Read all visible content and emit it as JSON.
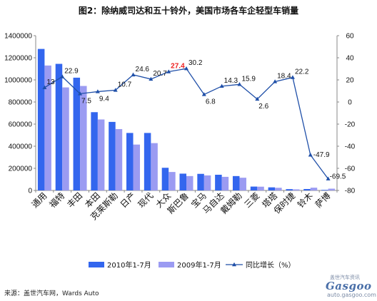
{
  "title": "图2：除纳威司达和五十铃外，美国市场各车企轻型车销量",
  "source": "来源：盖世汽车网，Wards Auto",
  "watermark": {
    "top": "盖世汽车资讯",
    "brand": "Gasgoo",
    "url": "auto.gasgoo.com"
  },
  "colors": {
    "bar2010": "#3366ee",
    "bar2009": "#9b9bf2",
    "line": "#1f4fa8",
    "highlight": "#ee2222"
  },
  "chart_data": {
    "type": "bar",
    "title": "图2：除纳威司达和五十铃外，美国市场各车企轻型车销量",
    "categories": [
      "通用",
      "福特",
      "丰田",
      "本田",
      "克莱斯勒",
      "日产",
      "现代",
      "大众",
      "斯巴鲁",
      "宝马",
      "马自达",
      "戴姆勒",
      "三菱",
      "塔塔",
      "保时捷",
      "铃木",
      "萨博"
    ],
    "series": [
      {
        "name": "2010年1-7月",
        "axis": "left",
        "values": [
          1280000,
          1145000,
          1020000,
          708000,
          620000,
          520000,
          520000,
          205000,
          152000,
          150000,
          142000,
          130000,
          35000,
          28000,
          12000,
          13000,
          5000
        ]
      },
      {
        "name": "2009年1-7月",
        "axis": "left",
        "values": [
          1130000,
          932000,
          945000,
          642000,
          555000,
          415000,
          428000,
          167000,
          130000,
          136000,
          123000,
          115000,
          34000,
          24000,
          10000,
          25000,
          16000
        ]
      },
      {
        "name": "同比增长（%）",
        "type": "line",
        "axis": "right",
        "values": [
          13,
          22.9,
          7.5,
          9.4,
          10.7,
          24.6,
          20.7,
          27.4,
          30.2,
          6.8,
          14.3,
          15.9,
          2.6,
          18.4,
          22.2,
          -47.9,
          -69.5
        ]
      }
    ],
    "y_left": {
      "min": 0,
      "max": 1400000,
      "ticks": [
        0,
        200000,
        400000,
        600000,
        800000,
        1000000,
        1200000,
        1400000
      ]
    },
    "y_right": {
      "min": -80,
      "max": 60,
      "ticks": [
        -80,
        -60,
        -40,
        -20,
        0,
        20,
        40,
        60
      ]
    },
    "line_labels": [
      "13",
      "22.9",
      "7.5",
      "9.4",
      "10.7",
      "24.6",
      "20.7",
      "27.4",
      "30.2",
      "6.8",
      "14.3",
      "15.9",
      "2.6",
      "18.4",
      "22.2",
      "-47.9",
      "-69.5"
    ],
    "highlight_label_index": 7,
    "legend": [
      "2010年1-7月",
      "2009年1-7月",
      "同比增长（%）"
    ],
    "legend_position": "bottom",
    "grid": false
  }
}
